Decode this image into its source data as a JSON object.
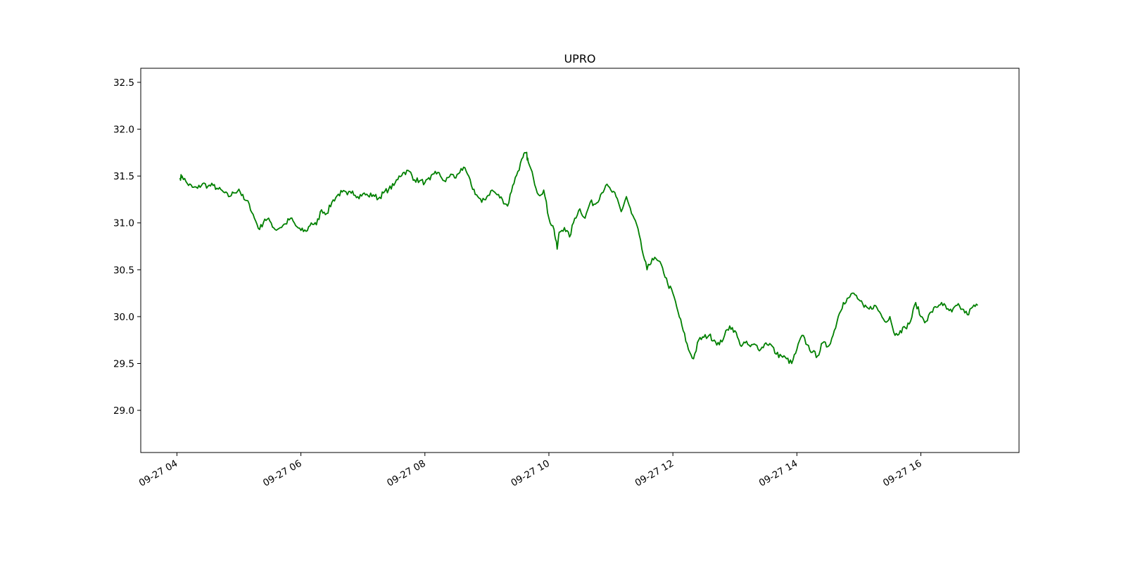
{
  "chart_data": {
    "type": "line",
    "title": "UPRO",
    "xlabel": "",
    "ylabel": "",
    "xlim": [
      "09-27 03:25",
      "09-27 17:35"
    ],
    "ylim": [
      28.55,
      32.65
    ],
    "grid": false,
    "legend": "none",
    "x_ticks": [
      "09-27 04",
      "09-27 06",
      "09-27 08",
      "09-27 10",
      "09-27 12",
      "09-27 14",
      "09-27 16"
    ],
    "y_ticks": [
      "29.0",
      "29.5",
      "30.0",
      "30.5",
      "31.0",
      "31.5",
      "32.0",
      "32.5"
    ],
    "series": [
      {
        "color": "#008000",
        "x": [
          "09-27 04:03",
          "09-27 04:05",
          "09-27 04:10",
          "09-27 04:15",
          "09-27 04:20",
          "09-27 04:25",
          "09-27 04:30",
          "09-27 04:35",
          "09-27 04:40",
          "09-27 04:45",
          "09-27 04:50",
          "09-27 04:55",
          "09-27 05:00",
          "09-27 05:05",
          "09-27 05:10",
          "09-27 05:15",
          "09-27 05:20",
          "09-27 05:25",
          "09-27 05:30",
          "09-27 05:35",
          "09-27 05:40",
          "09-27 05:45",
          "09-27 05:50",
          "09-27 05:55",
          "09-27 06:00",
          "09-27 06:05",
          "09-27 06:10",
          "09-27 06:15",
          "09-27 06:20",
          "09-27 06:25",
          "09-27 06:30",
          "09-27 06:35",
          "09-27 06:40",
          "09-27 06:45",
          "09-27 06:50",
          "09-27 06:55",
          "09-27 07:00",
          "09-27 07:05",
          "09-27 07:10",
          "09-27 07:15",
          "09-27 07:20",
          "09-27 07:25",
          "09-27 07:30",
          "09-27 07:35",
          "09-27 07:40",
          "09-27 07:45",
          "09-27 07:50",
          "09-27 07:55",
          "09-27 08:00",
          "09-27 08:05",
          "09-27 08:10",
          "09-27 08:15",
          "09-27 08:20",
          "09-27 08:25",
          "09-27 08:30",
          "09-27 08:35",
          "09-27 08:40",
          "09-27 08:45",
          "09-27 08:50",
          "09-27 08:55",
          "09-27 09:00",
          "09-27 09:05",
          "09-27 09:10",
          "09-27 09:15",
          "09-27 09:20",
          "09-27 09:25",
          "09-27 09:30",
          "09-27 09:35",
          "09-27 09:38",
          "09-27 09:40",
          "09-27 09:45",
          "09-27 09:50",
          "09-27 09:55",
          "09-27 10:00",
          "09-27 10:05",
          "09-27 10:08",
          "09-27 10:10",
          "09-27 10:15",
          "09-27 10:20",
          "09-27 10:25",
          "09-27 10:30",
          "09-27 10:35",
          "09-27 10:40",
          "09-27 10:45",
          "09-27 10:50",
          "09-27 10:55",
          "09-27 11:00",
          "09-27 11:05",
          "09-27 11:10",
          "09-27 11:15",
          "09-27 11:20",
          "09-27 11:25",
          "09-27 11:30",
          "09-27 11:35",
          "09-27 11:40",
          "09-27 11:45",
          "09-27 11:50",
          "09-27 11:55",
          "09-27 12:00",
          "09-27 12:05",
          "09-27 12:10",
          "09-27 12:15",
          "09-27 12:20",
          "09-27 12:25",
          "09-27 12:30",
          "09-27 12:35",
          "09-27 12:40",
          "09-27 12:45",
          "09-27 12:50",
          "09-27 12:55",
          "09-27 13:00",
          "09-27 13:05",
          "09-27 13:10",
          "09-27 13:15",
          "09-27 13:20",
          "09-27 13:25",
          "09-27 13:30",
          "09-27 13:35",
          "09-27 13:40",
          "09-27 13:45",
          "09-27 13:50",
          "09-27 13:55",
          "09-27 14:00",
          "09-27 14:05",
          "09-27 14:10",
          "09-27 14:15",
          "09-27 14:20",
          "09-27 14:25",
          "09-27 14:30",
          "09-27 14:35",
          "09-27 14:40",
          "09-27 14:45",
          "09-27 14:50",
          "09-27 14:55",
          "09-27 15:00",
          "09-27 15:05",
          "09-27 15:10",
          "09-27 15:15",
          "09-27 15:20",
          "09-27 15:25",
          "09-27 15:30",
          "09-27 15:35",
          "09-27 15:40",
          "09-27 15:45",
          "09-27 15:50",
          "09-27 15:55",
          "09-27 16:00",
          "09-27 16:05",
          "09-27 16:10",
          "09-27 16:15",
          "09-27 16:20",
          "09-27 16:25",
          "09-27 16:30",
          "09-27 16:35",
          "09-27 16:40",
          "09-27 16:45",
          "09-27 16:50",
          "09-27 16:55"
        ],
        "values": [
          31.48,
          31.5,
          31.42,
          31.38,
          31.37,
          31.42,
          31.39,
          31.4,
          31.36,
          31.33,
          31.28,
          31.32,
          31.36,
          31.25,
          31.2,
          31.05,
          30.93,
          31.04,
          31.02,
          30.93,
          30.95,
          30.99,
          31.05,
          30.97,
          30.92,
          30.91,
          31.0,
          30.98,
          31.14,
          31.1,
          31.22,
          31.29,
          31.33,
          31.3,
          31.34,
          31.28,
          31.31,
          31.29,
          31.3,
          31.26,
          31.32,
          31.36,
          31.4,
          31.5,
          31.54,
          31.55,
          31.46,
          31.45,
          31.43,
          31.46,
          31.55,
          31.5,
          31.44,
          31.52,
          31.48,
          31.58,
          31.55,
          31.4,
          31.3,
          31.22,
          31.28,
          31.35,
          31.3,
          31.25,
          31.18,
          31.4,
          31.55,
          31.7,
          31.75,
          31.65,
          31.48,
          31.3,
          31.35,
          31.05,
          30.93,
          30.72,
          30.9,
          30.95,
          30.85,
          31.05,
          31.15,
          31.05,
          31.22,
          31.2,
          31.3,
          31.4,
          31.35,
          31.28,
          31.12,
          31.28,
          31.1,
          30.98,
          30.72,
          30.5,
          30.62,
          30.6,
          30.52,
          30.35,
          30.25,
          30.05,
          29.85,
          29.65,
          29.55,
          29.75,
          29.78,
          29.8,
          29.75,
          29.7,
          29.8,
          29.9,
          29.85,
          29.7,
          29.72,
          29.68,
          29.7,
          29.65,
          29.72,
          29.7,
          29.6,
          29.58,
          29.55,
          29.5,
          29.65,
          29.8,
          29.7,
          29.62,
          29.58,
          29.72,
          29.68,
          29.8,
          30.0,
          30.15,
          30.2,
          30.25,
          30.18,
          30.1,
          30.08,
          30.12,
          30.05,
          29.95,
          30.0,
          29.8,
          29.85,
          29.88,
          29.95,
          30.15,
          30.0,
          29.95,
          30.05,
          30.1,
          30.15,
          30.08,
          30.05,
          30.12,
          30.08,
          30.02,
          30.1,
          30.12
        ]
      }
    ]
  }
}
